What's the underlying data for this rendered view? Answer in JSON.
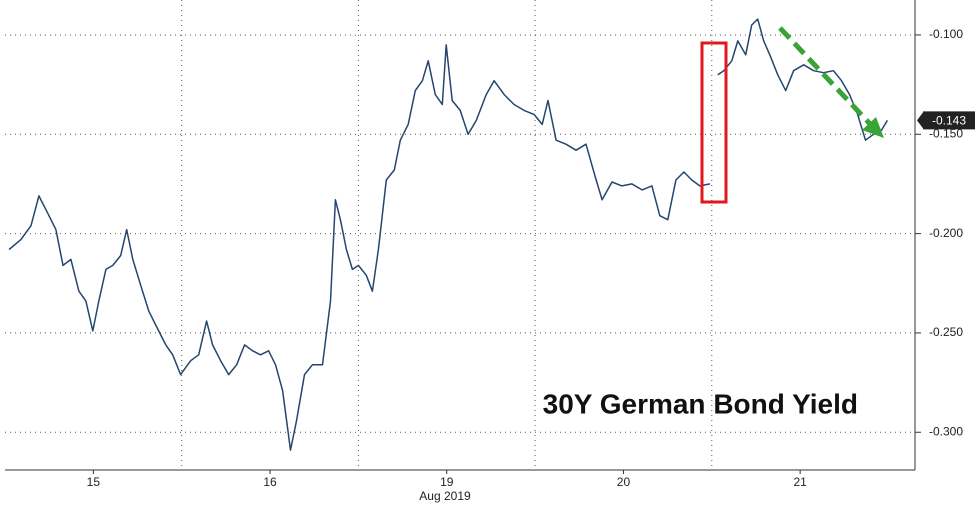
{
  "chart_data": {
    "type": "line",
    "title": "30Y German Bond Yield",
    "xlabel": "Aug 2019",
    "last_label": "-0.143",
    "x": [
      0.023,
      0.09,
      0.147,
      0.192,
      0.232,
      0.288,
      0.328,
      0.373,
      0.418,
      0.458,
      0.497,
      0.531,
      0.571,
      0.61,
      0.655,
      0.689,
      0.723,
      0.768,
      0.814,
      0.853,
      0.91,
      0.949,
      0.994,
      1.051,
      1.096,
      1.141,
      1.175,
      1.22,
      1.266,
      1.311,
      1.356,
      1.401,
      1.446,
      1.492,
      1.531,
      1.571,
      1.616,
      1.65,
      1.695,
      1.74,
      1.797,
      1.842,
      1.87,
      1.898,
      1.932,
      1.966,
      2.0,
      2.045,
      2.079,
      2.113,
      2.158,
      2.203,
      2.237,
      2.282,
      2.322,
      2.362,
      2.395,
      2.435,
      2.475,
      2.497,
      2.531,
      2.576,
      2.621,
      2.667,
      2.723,
      2.768,
      2.825,
      2.881,
      2.938,
      2.994,
      3.04,
      3.073,
      3.119,
      3.175,
      3.232,
      3.288,
      3.339,
      3.379,
      3.435,
      3.492,
      3.548,
      3.605,
      3.661,
      3.706,
      3.751,
      3.797,
      3.842,
      3.887,
      3.932,
      3.989,
      4.02,
      4.034,
      4.068,
      4.113,
      4.147,
      4.192,
      4.226,
      4.26,
      4.294,
      4.328,
      4.373,
      4.418,
      4.463,
      4.52,
      4.576,
      4.633,
      4.689,
      4.734,
      4.78,
      4.825,
      4.87,
      4.915,
      4.96,
      4.994
    ],
    "series": [
      {
        "color": "#24466e",
        "values": [
          -0.208,
          -0.203,
          -0.196,
          -0.181,
          -0.188,
          -0.198,
          -0.216,
          -0.213,
          -0.229,
          -0.234,
          -0.249,
          -0.234,
          -0.218,
          -0.216,
          -0.211,
          -0.198,
          -0.213,
          -0.226,
          -0.239,
          -0.246,
          -0.256,
          -0.261,
          -0.271,
          -0.264,
          -0.261,
          -0.244,
          -0.256,
          -0.264,
          -0.271,
          -0.266,
          -0.256,
          -0.259,
          -0.261,
          -0.259,
          -0.266,
          -0.279,
          -0.309,
          -0.294,
          -0.271,
          -0.266,
          -0.266,
          -0.234,
          -0.183,
          -0.193,
          -0.208,
          -0.218,
          -0.216,
          -0.221,
          -0.229,
          -0.208,
          -0.173,
          -0.168,
          -0.153,
          -0.145,
          -0.128,
          -0.123,
          -0.113,
          -0.13,
          -0.135,
          -0.105,
          -0.133,
          -0.138,
          -0.15,
          -0.143,
          -0.13,
          -0.123,
          -0.13,
          -0.135,
          -0.138,
          -0.14,
          -0.145,
          -0.133,
          -0.153,
          -0.155,
          -0.158,
          -0.155,
          -0.171,
          -0.183,
          -0.174,
          -0.176,
          -0.175,
          -0.178,
          -0.176,
          -0.191,
          -0.193,
          -0.173,
          -0.169,
          -0.173,
          -0.176,
          -0.175,
          null,
          -0.12,
          -0.118,
          -0.113,
          -0.103,
          -0.11,
          -0.095,
          -0.092,
          -0.103,
          -0.11,
          -0.12,
          -0.128,
          -0.118,
          -0.115,
          -0.118,
          -0.119,
          -0.118,
          -0.123,
          -0.13,
          -0.14,
          -0.153,
          -0.15,
          -0.148,
          -0.143
        ]
      }
    ],
    "xlim": [
      0,
      5.15
    ],
    "xticks": [
      {
        "value": 0.5,
        "label": "15"
      },
      {
        "value": 1.5,
        "label": "16"
      },
      {
        "value": 2.5,
        "label": "19"
      },
      {
        "value": 3.5,
        "label": "20"
      },
      {
        "value": 4.5,
        "label": "21"
      }
    ],
    "ylim": [
      -0.319,
      -0.0824
    ],
    "yticks": [
      {
        "value": -0.1,
        "label": "-0.100"
      },
      {
        "value": -0.15,
        "label": "-0.150"
      },
      {
        "value": -0.2,
        "label": "-0.200"
      },
      {
        "value": -0.25,
        "label": "-0.250"
      },
      {
        "value": -0.3,
        "label": "-0.300"
      }
    ],
    "grid": true
  }
}
